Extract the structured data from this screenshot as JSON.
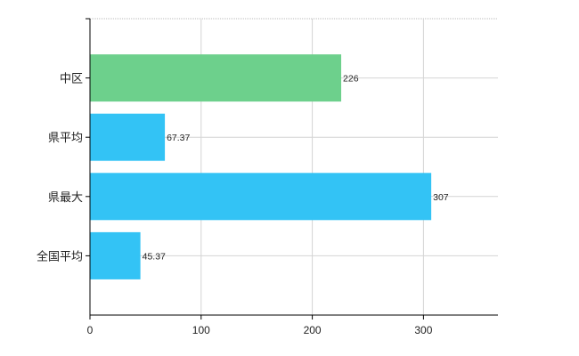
{
  "chart_data": {
    "type": "bar",
    "orientation": "horizontal",
    "categories": [
      "中区",
      "県平均",
      "県最大",
      "全国平均"
    ],
    "values": [
      226,
      67.37,
      307,
      45.37
    ],
    "value_labels": [
      "226",
      "67.37",
      "307",
      "45.37"
    ],
    "colors": [
      "#6dd08c",
      "#33c3f5",
      "#33c3f5",
      "#33c3f5"
    ],
    "xlim": [
      0,
      367
    ],
    "xticks": [
      0,
      100,
      200,
      300
    ],
    "xtick_labels": [
      "0",
      "100",
      "200",
      "300"
    ],
    "grid": true
  }
}
